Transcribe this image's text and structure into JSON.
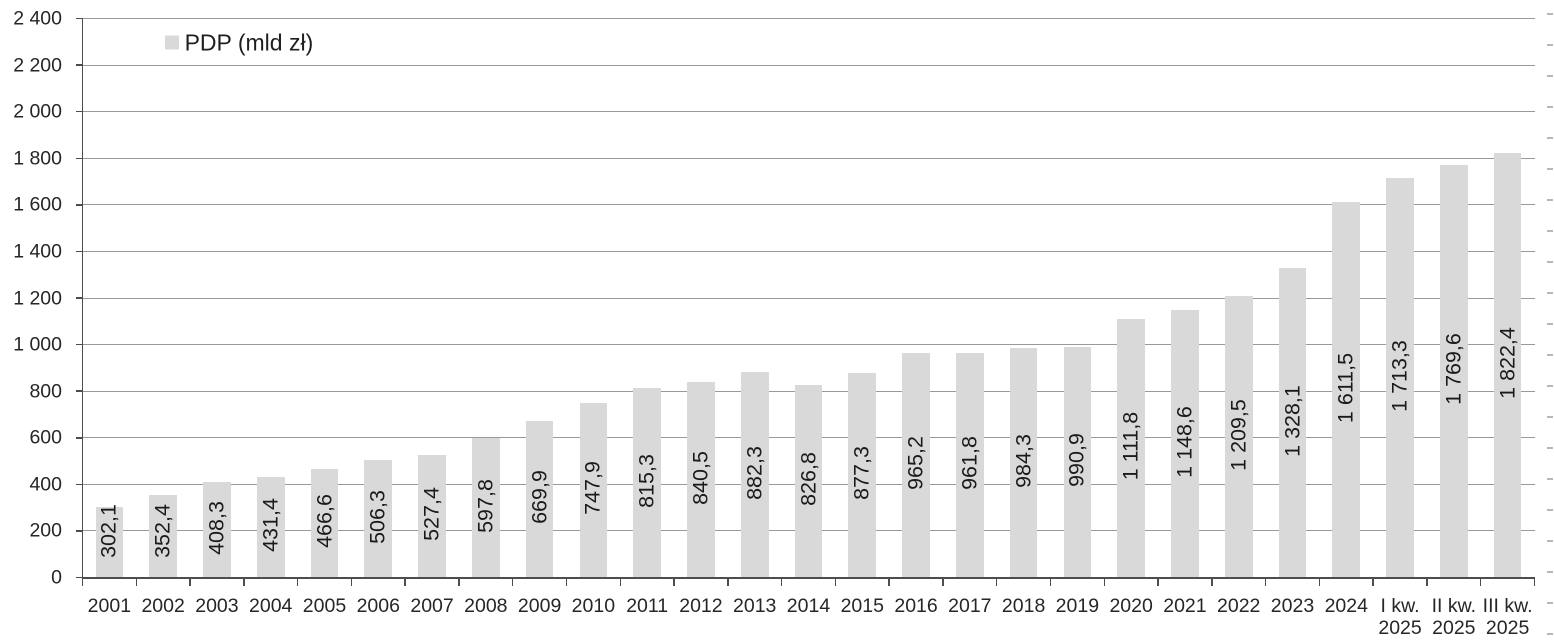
{
  "chart_data": {
    "type": "bar",
    "title": "",
    "legend": [
      {
        "label": "PDP (mld zł)",
        "color": "#d9d9d9"
      }
    ],
    "legend_position": "top-left-inside",
    "categories": [
      "2001",
      "2002",
      "2003",
      "2004",
      "2005",
      "2006",
      "2007",
      "2008",
      "2009",
      "2010",
      "2011",
      "2012",
      "2013",
      "2014",
      "2015",
      "2016",
      "2017",
      "2018",
      "2019",
      "2020",
      "2021",
      "2022",
      "2023",
      "2024",
      "I kw. 2025",
      "II kw. 2025",
      "III kw. 2025"
    ],
    "category_labels": [
      [
        "2001"
      ],
      [
        "2002"
      ],
      [
        "2003"
      ],
      [
        "2004"
      ],
      [
        "2005"
      ],
      [
        "2006"
      ],
      [
        "2007"
      ],
      [
        "2008"
      ],
      [
        "2009"
      ],
      [
        "2010"
      ],
      [
        "2011"
      ],
      [
        "2012"
      ],
      [
        "2013"
      ],
      [
        "2014"
      ],
      [
        "2015"
      ],
      [
        "2016"
      ],
      [
        "2017"
      ],
      [
        "2018"
      ],
      [
        "2019"
      ],
      [
        "2020"
      ],
      [
        "2021"
      ],
      [
        "2022"
      ],
      [
        "2023"
      ],
      [
        "2024"
      ],
      [
        "I kw.",
        "2025"
      ],
      [
        "II kw.",
        "2025"
      ],
      [
        "III kw.",
        "2025"
      ]
    ],
    "series": [
      {
        "name": "PDP (mld zł)",
        "values": [
          302.1,
          352.4,
          408.3,
          431.4,
          466.6,
          506.3,
          527.4,
          597.8,
          669.9,
          747.9,
          815.3,
          840.5,
          882.3,
          826.8,
          877.3,
          965.2,
          961.8,
          984.3,
          990.9,
          1111.8,
          1148.6,
          1209.5,
          1328.1,
          1611.5,
          1713.3,
          1769.6,
          1822.4
        ],
        "value_labels": [
          "302,1",
          "352,4",
          "408,3",
          "431,4",
          "466,6",
          "506,3",
          "527,4",
          "597,8",
          "669,9",
          "747,9",
          "815,3",
          "840,5",
          "882,3",
          "826,8",
          "877,3",
          "965,2",
          "961,8",
          "984,3",
          "990,9",
          "1 111,8",
          "1 148,6",
          "1 209,5",
          "1 328,1",
          "1 611,5",
          "1 713,3",
          "1 769,6",
          "1 822,4"
        ]
      }
    ],
    "xlabel": "",
    "ylabel": "",
    "ylim": [
      0,
      2400
    ],
    "y_major_step": 200,
    "y_tick_labels": [
      "0",
      "200",
      "400",
      "600",
      "800",
      "1 000",
      "1 200",
      "1 400",
      "1 600",
      "1 800",
      "2 000",
      "2 200",
      "2 400"
    ],
    "grid": true,
    "value_label_rotation_deg": 90,
    "colors": {
      "bar_fill": "#d9d9d9",
      "gridline": "#999999",
      "axis_line": "#4d4d4d",
      "secondary_tick": "#b7b7b7",
      "text": "#262626"
    }
  }
}
